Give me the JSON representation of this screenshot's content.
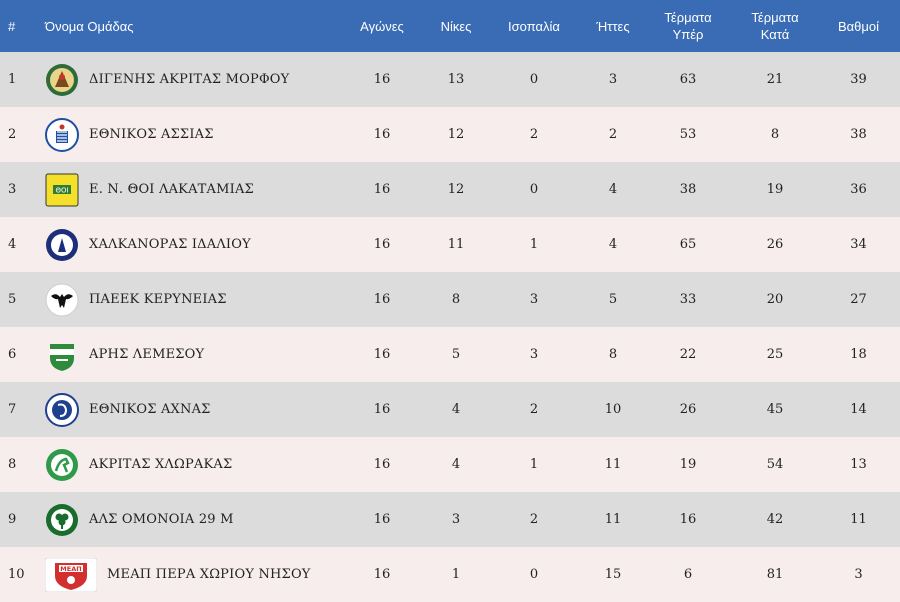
{
  "colors": {
    "header_bg": "#3a6bb5",
    "row_odd": "#dcdcdc",
    "row_even": "#f7eded"
  },
  "headers": {
    "pos": "#",
    "team": "Όνομα Ομάδας",
    "played": "Αγώνες",
    "wins": "Νίκες",
    "draws": "Ισοπαλία",
    "losses": "Ήττες",
    "gf": "Τέρματα Υπέρ",
    "ga": "Τέρματα Κατά",
    "points": "Βαθμοί"
  },
  "rows": [
    {
      "pos": "1",
      "team": "ΔΙΓΕΝΗΣ ΑΚΡΙΤΑΣ ΜΟΡΦΟΥ",
      "played": "16",
      "wins": "13",
      "draws": "0",
      "losses": "3",
      "gf": "63",
      "ga": "21",
      "points": "39",
      "logo": "digenis-logo-icon"
    },
    {
      "pos": "2",
      "team": "ΕΘΝΙΚΟΣ ΑΣΣΙΑΣ",
      "played": "16",
      "wins": "12",
      "draws": "2",
      "losses": "2",
      "gf": "53",
      "ga": "8",
      "points": "38",
      "logo": "ethnikos-assias-logo-icon"
    },
    {
      "pos": "3",
      "team": "Ε. Ν. ΘΟΙ ΛΑΚΑΤΑΜΙΑΣ",
      "played": "16",
      "wins": "12",
      "draws": "0",
      "losses": "4",
      "gf": "38",
      "ga": "19",
      "points": "36",
      "logo": "thoi-logo-icon"
    },
    {
      "pos": "4",
      "team": "ΧΑΛΚΑΝΟΡΑΣ ΙΔΑΛΙΟΥ",
      "played": "16",
      "wins": "11",
      "draws": "1",
      "losses": "4",
      "gf": "65",
      "ga": "26",
      "points": "34",
      "logo": "chalkanoras-logo-icon"
    },
    {
      "pos": "5",
      "team": "ΠΑΕΕΚ ΚΕΡΥΝΕΙΑΣ",
      "played": "16",
      "wins": "8",
      "draws": "3",
      "losses": "5",
      "gf": "33",
      "ga": "20",
      "points": "27",
      "logo": "paeek-logo-icon"
    },
    {
      "pos": "6",
      "team": "ΑΡΗΣ ΛΕΜΕΣΟΥ",
      "played": "16",
      "wins": "5",
      "draws": "3",
      "losses": "8",
      "gf": "22",
      "ga": "25",
      "points": "18",
      "logo": "aris-logo-icon"
    },
    {
      "pos": "7",
      "team": "ΕΘΝΙΚΟΣ ΑΧΝΑΣ",
      "played": "16",
      "wins": "4",
      "draws": "2",
      "losses": "10",
      "gf": "26",
      "ga": "45",
      "points": "14",
      "logo": "ethnikos-achnas-logo-icon"
    },
    {
      "pos": "8",
      "team": "ΑΚΡΙΤΑΣ ΧΛΩΡΑΚΑΣ",
      "played": "16",
      "wins": "4",
      "draws": "1",
      "losses": "11",
      "gf": "19",
      "ga": "54",
      "points": "13",
      "logo": "akritas-logo-icon"
    },
    {
      "pos": "9",
      "team": "ΑΛΣ ΟΜΟΝΟΙΑ 29 Μ",
      "played": "16",
      "wins": "3",
      "draws": "2",
      "losses": "11",
      "gf": "16",
      "ga": "42",
      "points": "11",
      "logo": "omonoia-logo-icon"
    },
    {
      "pos": "10",
      "team": "ΜΕΑΠ ΠΕΡΑ ΧΩΡΙΟΥ ΝΗΣΟΥ",
      "played": "16",
      "wins": "1",
      "draws": "0",
      "losses": "15",
      "gf": "6",
      "ga": "81",
      "points": "3",
      "logo": "meap-logo-icon"
    }
  ]
}
